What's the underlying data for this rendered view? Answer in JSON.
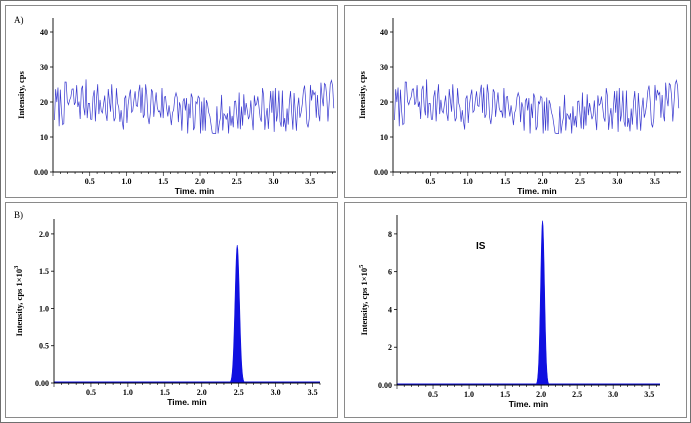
{
  "figure": {
    "label_a": "A)",
    "label_b": "B)"
  },
  "chart_data": [
    {
      "id": "A1",
      "type": "line",
      "xlabel": "Time. min",
      "ylabel": "Intensity, cps",
      "xlim": [
        0,
        3.85
      ],
      "ylim": [
        0,
        44
      ],
      "xticks": [
        "0.5",
        "1.0",
        "1.5",
        "2.0",
        "2.5",
        "3.0",
        "3.5"
      ],
      "yticks": [
        "0.00",
        "10",
        "20",
        "30",
        "40"
      ],
      "color": "#3a3acf",
      "noise": {
        "x_start": 0.02,
        "x_end": 3.82,
        "n": 240,
        "mean": 18,
        "min": 11,
        "max": 27,
        "seed": 7
      }
    },
    {
      "id": "A2",
      "type": "line",
      "xlabel": "Time. min",
      "ylabel": "Intensity, cps",
      "xlim": [
        0,
        3.85
      ],
      "ylim": [
        0,
        44
      ],
      "xticks": [
        "0.5",
        "1.0",
        "1.5",
        "2.0",
        "2.5",
        "3.0",
        "3.5"
      ],
      "yticks": [
        "0.00",
        "10",
        "20",
        "30",
        "40"
      ],
      "color": "#3a3acf",
      "noise": {
        "x_start": 0.02,
        "x_end": 3.82,
        "n": 240,
        "mean": 18,
        "min": 11,
        "max": 27,
        "seed": 7
      }
    },
    {
      "id": "B1",
      "type": "area",
      "xlabel": "Time. min",
      "ylabel": "Intensity, cps 1×10",
      "ylabel_exp": "3",
      "xlim": [
        0,
        3.6
      ],
      "ylim": [
        0,
        2.2
      ],
      "xticks": [
        "0.5",
        "1.0",
        "1.5",
        "2.0",
        "2.5",
        "3.0",
        "3.5"
      ],
      "yticks": [
        "0.00",
        "0.5",
        "1.0",
        "1.5",
        "2.0"
      ],
      "color": "#1010e0",
      "peak": {
        "x": 2.48,
        "height": 1.85,
        "width": 0.05
      }
    },
    {
      "id": "B2",
      "type": "area",
      "xlabel": "Time. min",
      "ylabel": "Intensity, cps 1×10",
      "ylabel_exp": "5",
      "xlim": [
        0,
        3.65
      ],
      "ylim": [
        0,
        9.0
      ],
      "xticks": [
        "0.5",
        "1.0",
        "1.5",
        "2.0",
        "2.5",
        "3.0",
        "3.5"
      ],
      "yticks": [
        "0.00",
        "2",
        "4",
        "6",
        "8"
      ],
      "color": "#1010e0",
      "peak": {
        "x": 2.02,
        "height": 8.7,
        "width": 0.045
      },
      "annotation": "IS"
    }
  ]
}
